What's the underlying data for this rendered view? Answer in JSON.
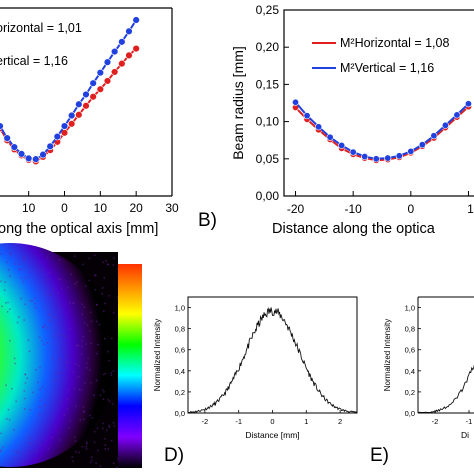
{
  "chart_data": [
    {
      "panel": "A",
      "type": "line",
      "xlabel": "ong the optical axis [mm]",
      "x_ticks": [
        "10",
        "0",
        "10",
        "20",
        "30"
      ],
      "xlim": [
        -18,
        30
      ],
      "ylim": [
        0,
        0.25
      ],
      "legend": [
        "orizontal = 1,01",
        "ertical = 1,16"
      ],
      "series": [
        {
          "name": "orizontal = 1,01",
          "color": "#e02020",
          "points": [
            [
              -18,
              0.09
            ],
            [
              -16,
              0.074
            ],
            [
              -14,
              0.062
            ],
            [
              -12,
              0.054
            ],
            [
              -10,
              0.048
            ],
            [
              -8,
              0.046
            ],
            [
              -6,
              0.052
            ],
            [
              -4,
              0.061
            ],
            [
              -2,
              0.072
            ],
            [
              0,
              0.084
            ],
            [
              2,
              0.096
            ],
            [
              4,
              0.108
            ],
            [
              6,
              0.12
            ],
            [
              8,
              0.132
            ],
            [
              10,
              0.142
            ],
            [
              12,
              0.153
            ],
            [
              14,
              0.165
            ],
            [
              16,
              0.176
            ],
            [
              18,
              0.187
            ],
            [
              20,
              0.196
            ]
          ]
        },
        {
          "name": "ertical = 1,16",
          "color": "#2040e0",
          "points": [
            [
              -18,
              0.093
            ],
            [
              -16,
              0.077
            ],
            [
              -14,
              0.065
            ],
            [
              -12,
              0.056
            ],
            [
              -10,
              0.05
            ],
            [
              -8,
              0.049
            ],
            [
              -6,
              0.055
            ],
            [
              -4,
              0.066
            ],
            [
              -2,
              0.079
            ],
            [
              0,
              0.093
            ],
            [
              2,
              0.107
            ],
            [
              4,
              0.122
            ],
            [
              6,
              0.135
            ],
            [
              8,
              0.15
            ],
            [
              10,
              0.164
            ],
            [
              12,
              0.178
            ],
            [
              14,
              0.192
            ],
            [
              16,
              0.205
            ],
            [
              18,
              0.219
            ],
            [
              20,
              0.234
            ]
          ]
        }
      ]
    },
    {
      "panel": "B",
      "type": "line",
      "ylabel": "Beam radius [mm]",
      "xlabel": "Distance along the optica",
      "xlim": [
        -22,
        12
      ],
      "ylim": [
        0,
        0.25
      ],
      "y_ticks": [
        "0,00",
        "0,05",
        "0,10",
        "0,15",
        "0,20",
        "0,25"
      ],
      "x_ticks": [
        "-20",
        "-10",
        "0",
        "1"
      ],
      "legend": [
        "M²Horizontal = 1,08",
        "M²Vertical    = 1,16"
      ],
      "series": [
        {
          "name": "M²Horizontal = 1,08",
          "color": "#e02020",
          "points": [
            [
              -20,
              0.119
            ],
            [
              -18,
              0.103
            ],
            [
              -16,
              0.089
            ],
            [
              -14,
              0.076
            ],
            [
              -12,
              0.064
            ],
            [
              -10,
              0.056
            ],
            [
              -8,
              0.051
            ],
            [
              -6,
              0.048
            ],
            [
              -4,
              0.049
            ],
            [
              -2,
              0.052
            ],
            [
              0,
              0.058
            ],
            [
              2,
              0.067
            ],
            [
              4,
              0.078
            ],
            [
              6,
              0.092
            ],
            [
              8,
              0.106
            ],
            [
              10,
              0.12
            ]
          ]
        },
        {
          "name": "M²Vertical    = 1,16",
          "color": "#2040e0",
          "points": [
            [
              -20,
              0.126
            ],
            [
              -18,
              0.108
            ],
            [
              -16,
              0.093
            ],
            [
              -14,
              0.079
            ],
            [
              -12,
              0.068
            ],
            [
              -10,
              0.059
            ],
            [
              -8,
              0.053
            ],
            [
              -6,
              0.05
            ],
            [
              -4,
              0.051
            ],
            [
              -2,
              0.054
            ],
            [
              0,
              0.06
            ],
            [
              2,
              0.069
            ],
            [
              4,
              0.081
            ],
            [
              6,
              0.095
            ],
            [
              8,
              0.109
            ],
            [
              10,
              0.124
            ]
          ]
        }
      ]
    },
    {
      "panel": "C",
      "type": "heatmap",
      "description_colors": [
        "#ff0000",
        "#ff8000",
        "#ffff00",
        "#00ff00",
        "#00ffff",
        "#0000ff",
        "#8000ff",
        "#000000"
      ]
    },
    {
      "panel": "D",
      "type": "line",
      "ylabel": "Normalized Intensity",
      "xlabel": "Distance [mm]",
      "xlim": [
        -2.5,
        2.5
      ],
      "ylim": [
        0,
        1.1
      ],
      "x_ticks": [
        "-2",
        "-1",
        "0",
        "1",
        "2"
      ],
      "y_ticks": [
        "0,0",
        "0,2",
        "0,4",
        "0,6",
        "0,8",
        "1,0"
      ],
      "gaussian_sigma": 0.78,
      "peak": 0.97
    },
    {
      "panel": "E",
      "type": "line",
      "ylabel": "Normalized Intensity",
      "xlabel": "Di",
      "x_ticks": [
        "-2",
        "-1"
      ],
      "y_ticks": [
        "0,0",
        "0,2",
        "0,4",
        "0,6",
        "0,8",
        "1,0"
      ]
    }
  ],
  "panel_labels": {
    "b": "B)",
    "d": "D)",
    "e": "E)"
  }
}
